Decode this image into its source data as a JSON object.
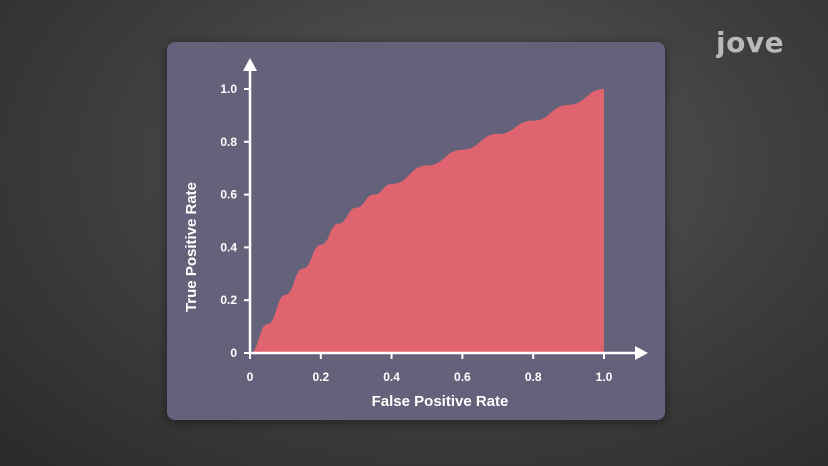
{
  "logo": {
    "text": "jove",
    "color": "#b9b9b9"
  },
  "colors": {
    "panel": "#63627a",
    "fill": "#e0646f",
    "axis": "#ffffff"
  },
  "chart_data": {
    "type": "area",
    "xlabel": "False Positive Rate",
    "ylabel": "True Positive Rate",
    "xlim": [
      0,
      1.0
    ],
    "ylim": [
      0,
      1.0
    ],
    "grid": false,
    "xticks": [
      "0",
      "0.2",
      "0.4",
      "0.6",
      "0.8",
      "1.0"
    ],
    "yticks": [
      "0",
      "0.2",
      "0.4",
      "0.6",
      "0.8",
      "1.0"
    ],
    "x": [
      0,
      0.05,
      0.1,
      0.15,
      0.2,
      0.25,
      0.3,
      0.35,
      0.4,
      0.5,
      0.6,
      0.7,
      0.8,
      0.9,
      1.0
    ],
    "series": [
      {
        "values": [
          0,
          0.11,
          0.22,
          0.32,
          0.41,
          0.49,
          0.55,
          0.6,
          0.64,
          0.71,
          0.77,
          0.83,
          0.88,
          0.94,
          1.0
        ]
      }
    ]
  }
}
